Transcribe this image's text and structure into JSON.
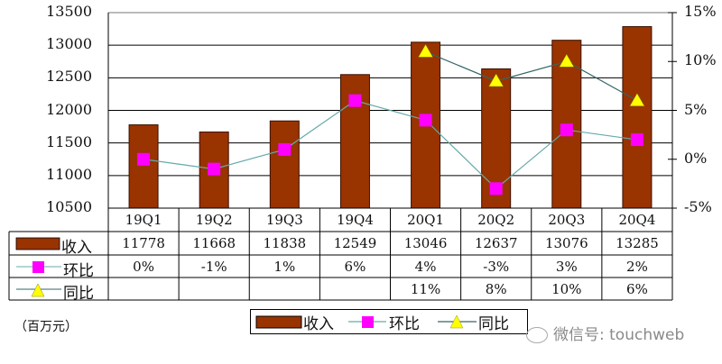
{
  "chart_data": {
    "type": "bar",
    "title": "",
    "categories": [
      "19Q1",
      "19Q2",
      "19Q3",
      "19Q4",
      "20Q1",
      "20Q2",
      "20Q3",
      "20Q4"
    ],
    "series": [
      {
        "name": "收入",
        "type": "bar",
        "axis": "left",
        "color": "#993300",
        "values": [
          11778,
          11668,
          11838,
          12549,
          13046,
          12637,
          13076,
          13285
        ]
      },
      {
        "name": "环比",
        "type": "line",
        "axis": "right",
        "color": "#FF00FF",
        "line_color": "#66AAAA",
        "marker": "square",
        "values": [
          0,
          -1,
          1,
          6,
          4,
          -3,
          3,
          2
        ],
        "labels": [
          "0%",
          "-1%",
          "1%",
          "6%",
          "4%",
          "-3%",
          "3%",
          "2%"
        ]
      },
      {
        "name": "同比",
        "type": "line",
        "axis": "right",
        "color": "#FFFF00",
        "line_color": "#336666",
        "marker": "triangle",
        "values": [
          null,
          null,
          null,
          null,
          11,
          8,
          10,
          6
        ],
        "labels": [
          "",
          "",
          "",
          "",
          "11%",
          "8%",
          "10%",
          "6%"
        ]
      }
    ],
    "ylim": [
      10500,
      13500
    ],
    "yticks": [
      "13500",
      "13000",
      "12500",
      "12000",
      "11500",
      "11000",
      "10500"
    ],
    "y2lim": [
      -5,
      15
    ],
    "y2ticks": [
      "15%",
      "10%",
      "5%",
      "0%",
      "-5%"
    ],
    "xlabel": "",
    "ylabel": "",
    "unit_label": "（百万元）",
    "grid": true,
    "legend_position": "bottom",
    "data_table": true
  },
  "table": {
    "row_labels": [
      "收入",
      "环比",
      "同比"
    ]
  },
  "legend": {
    "items": [
      "收入",
      "环比",
      "同比"
    ]
  },
  "watermark": "微信号: touchweb"
}
